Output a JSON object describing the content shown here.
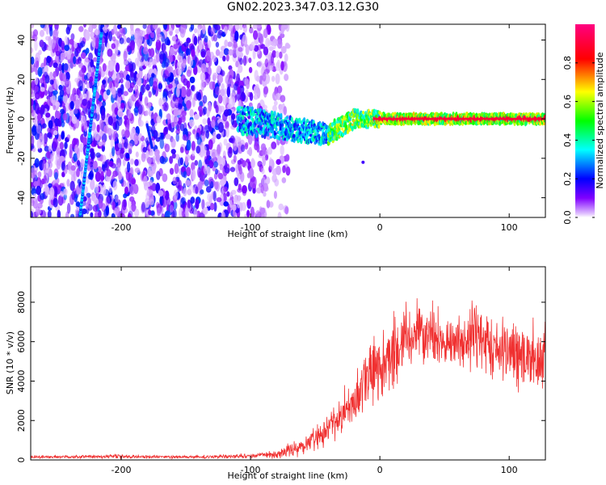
{
  "title": "GN02.2023.347.03.12.G30",
  "chart_data": [
    {
      "type": "heatmap",
      "title": "GN02.2023.347.03.12.G30",
      "xlabel": "Height of straight line (km)",
      "ylabel": "Frequency (Hz)",
      "xlim": [
        -270,
        128
      ],
      "ylim": [
        -50,
        48
      ],
      "xticks": [
        -200,
        -100,
        0,
        100
      ],
      "yticks": [
        -40,
        -20,
        0,
        20,
        40
      ],
      "colorbar": {
        "label": "Normalized spectral amplitude",
        "range": [
          0,
          1
        ],
        "ticks": [
          0.0,
          0.2,
          0.4,
          0.6,
          0.8
        ],
        "tick_labels": [
          "0.0",
          "0.2",
          "0.4",
          "0.6",
          "0.8"
        ],
        "colors": [
          "#ffffff",
          "#8000ff",
          "#0000ff",
          "#00ffff",
          "#00ff00",
          "#ffff00",
          "#ff0000",
          "#ff0080"
        ]
      },
      "features": {
        "noise_region_x": [
          -270,
          -95
        ],
        "carrier_frequency_hz": 0,
        "signal_onset_km": -100,
        "diagonal_line": {
          "x": [
            -232,
            -215
          ],
          "y": [
            -50,
            45
          ]
        },
        "secondary_trace": {
          "x": [
            -180,
            -176
          ],
          "y": [
            -3,
            -15
          ]
        },
        "outlier_point": {
          "x": -13,
          "y": -22
        }
      }
    },
    {
      "type": "line",
      "xlabel": "Height of straight line (km)",
      "ylabel": "SNR (10 * v/v)",
      "xlim": [
        -270,
        128
      ],
      "ylim": [
        0,
        9800
      ],
      "xticks": [
        -200,
        -100,
        0,
        100
      ],
      "yticks": [
        0,
        2000,
        4000,
        6000,
        8000
      ],
      "line_color": "#f03030",
      "envelope": {
        "x": [
          -270,
          -200,
          -150,
          -100,
          -80,
          -60,
          -40,
          -20,
          -10,
          0,
          10,
          20,
          30,
          40,
          50,
          60,
          70,
          80,
          90,
          100,
          110,
          128
        ],
        "y_mid": [
          150,
          180,
          140,
          200,
          300,
          700,
          1500,
          3000,
          4200,
          4800,
          5400,
          6000,
          6400,
          6600,
          5900,
          6000,
          6400,
          6200,
          5800,
          5500,
          5300,
          5200
        ],
        "y_spread": [
          100,
          130,
          90,
          140,
          250,
          600,
          1000,
          1800,
          2200,
          2300,
          2400,
          2300,
          2100,
          2000,
          1300,
          1500,
          2100,
          2300,
          2500,
          2500,
          2300,
          2000
        ]
      }
    }
  ]
}
